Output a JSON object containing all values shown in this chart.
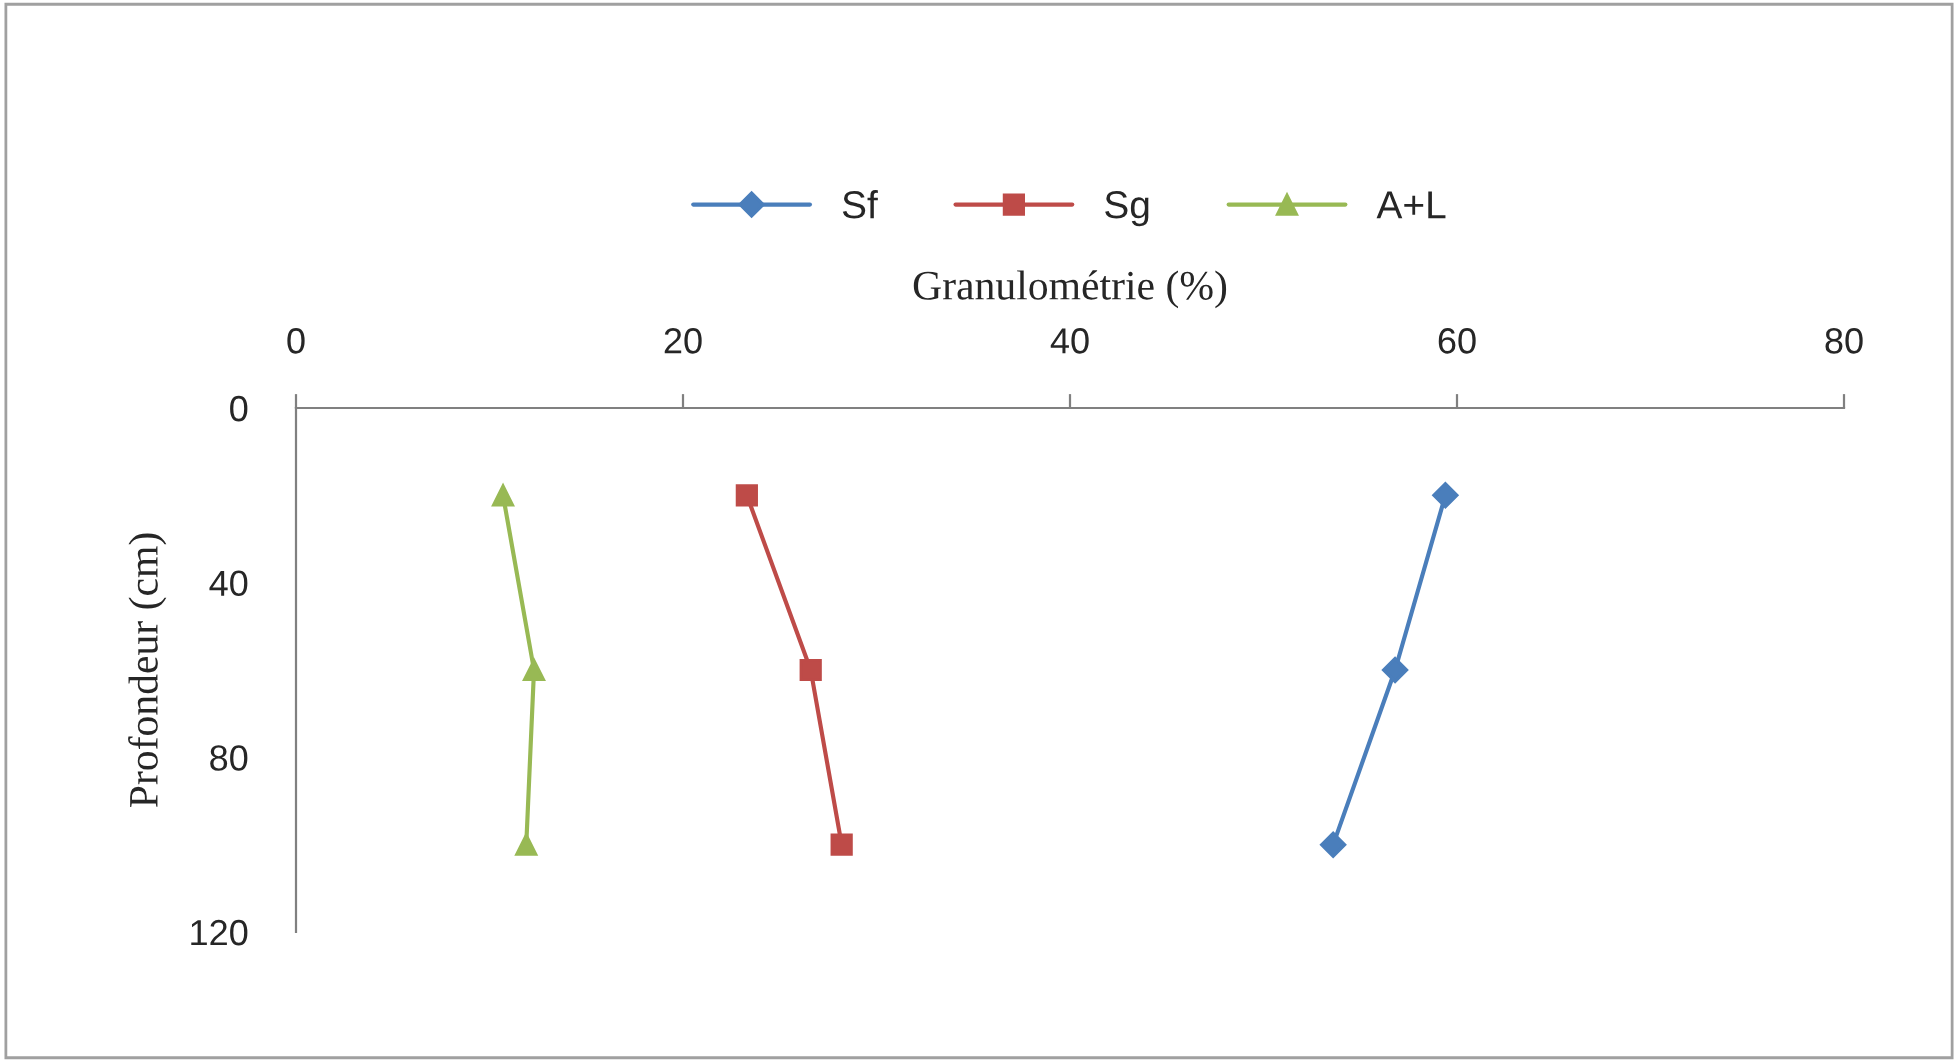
{
  "chart_data": {
    "type": "line",
    "xlabel": "Granulométrie (%)",
    "ylabel": "Profondeur (cm)",
    "xlim": [
      0,
      80
    ],
    "xticks": [
      0,
      20,
      40,
      60,
      80
    ],
    "ylim": [
      120,
      0
    ],
    "yticks": [
      0,
      40,
      80,
      120
    ],
    "grid": false,
    "legend": "top",
    "line_style": "solid",
    "series": [
      {
        "name": "Sf",
        "color": "#4a7ebb",
        "marker": "diamond",
        "x": [
          59.4,
          56.8,
          53.6
        ],
        "values": [
          20,
          60,
          100
        ]
      },
      {
        "name": "Sg",
        "color": "#be4b48",
        "marker": "square",
        "x": [
          23.3,
          26.6,
          28.2
        ],
        "values": [
          20,
          60,
          100
        ]
      },
      {
        "name": "A+L",
        "color": "#98b954",
        "marker": "triangle",
        "x": [
          10.7,
          12.3,
          11.9
        ],
        "values": [
          20,
          60,
          100
        ]
      }
    ]
  }
}
